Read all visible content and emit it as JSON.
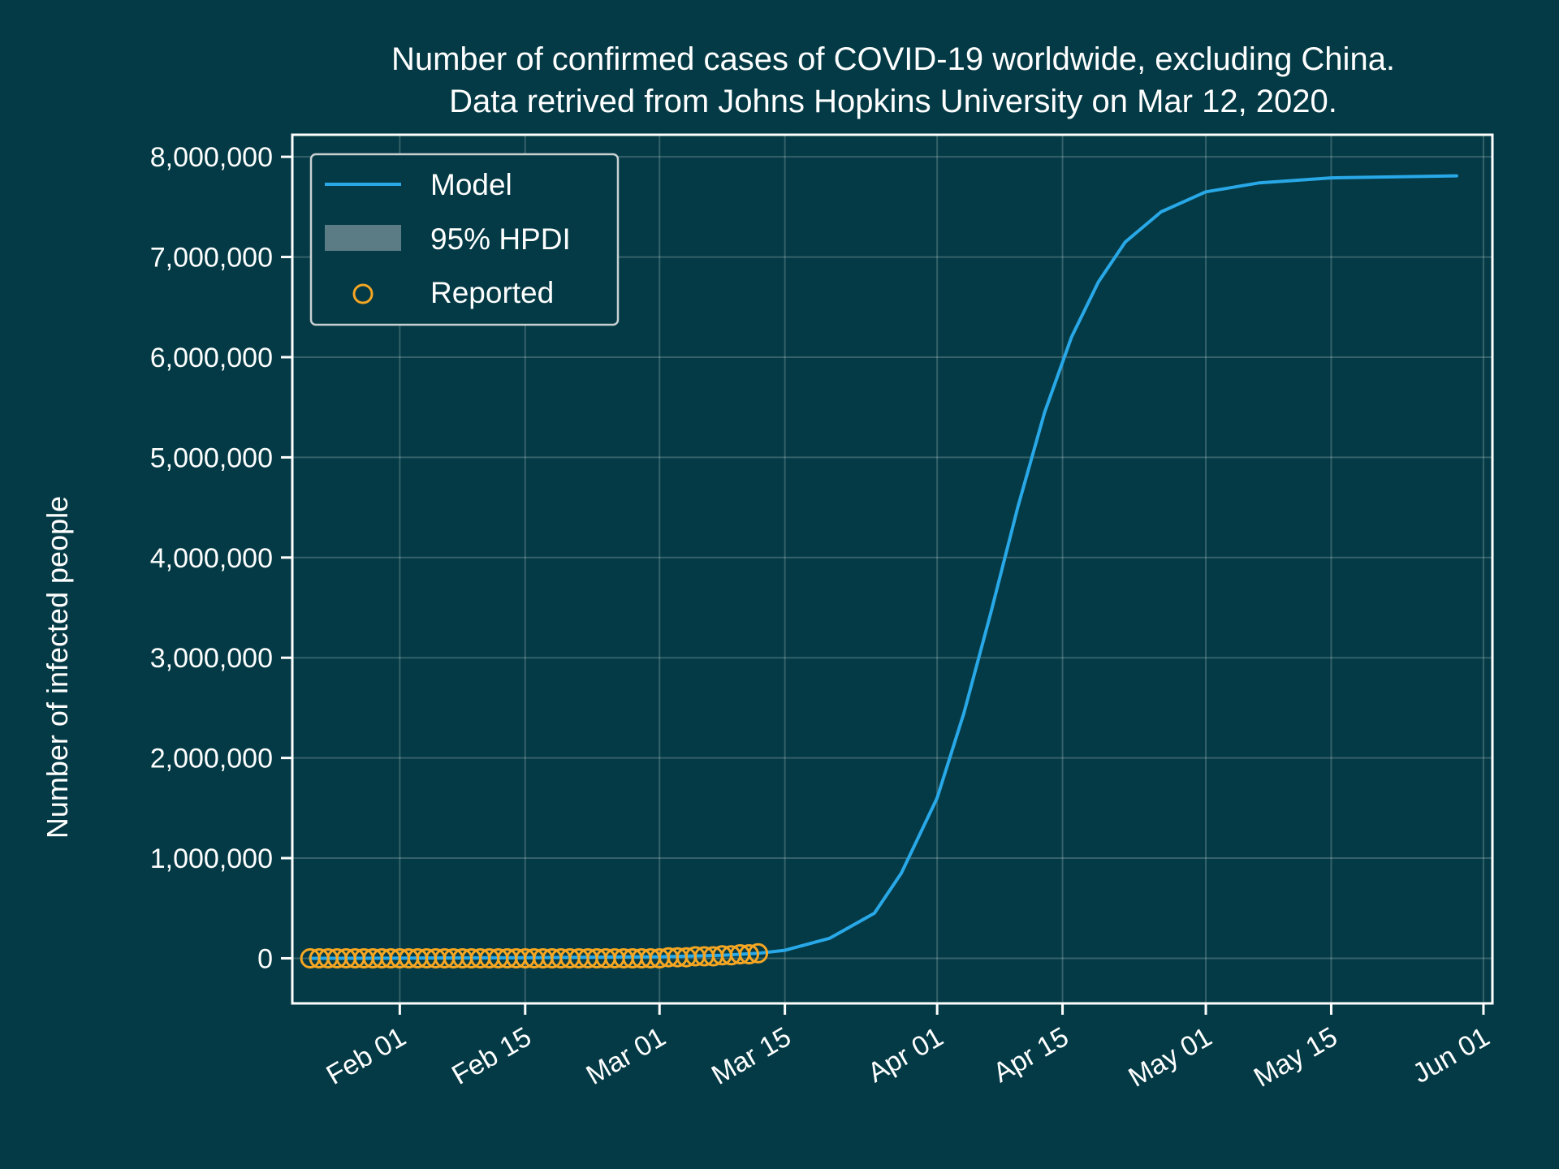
{
  "chart_data": {
    "type": "line",
    "title_lines": [
      "Number of confirmed cases of COVID-19 worldwide, excluding China.",
      "Data retrived from Johns Hopkins University on Mar 12, 2020."
    ],
    "xlabel": "",
    "ylabel": "Number of infected people",
    "x_axis_type": "date",
    "xlim": [
      "2020-01-20",
      "2020-06-02"
    ],
    "ylim": [
      -450000,
      8220000
    ],
    "x_ticks": [
      {
        "date": "2020-02-01",
        "label": "Feb 01"
      },
      {
        "date": "2020-02-15",
        "label": "Feb 15"
      },
      {
        "date": "2020-03-01",
        "label": "Mar 01"
      },
      {
        "date": "2020-03-15",
        "label": "Mar 15"
      },
      {
        "date": "2020-04-01",
        "label": "Apr 01"
      },
      {
        "date": "2020-04-15",
        "label": "Apr 15"
      },
      {
        "date": "2020-05-01",
        "label": "May 01"
      },
      {
        "date": "2020-05-15",
        "label": "May 15"
      },
      {
        "date": "2020-06-01",
        "label": "Jun 01"
      }
    ],
    "y_ticks": [
      {
        "value": 0,
        "label": "0"
      },
      {
        "value": 1000000,
        "label": "1,000,000"
      },
      {
        "value": 2000000,
        "label": "2,000,000"
      },
      {
        "value": 3000000,
        "label": "3,000,000"
      },
      {
        "value": 4000000,
        "label": "4,000,000"
      },
      {
        "value": 5000000,
        "label": "5,000,000"
      },
      {
        "value": 6000000,
        "label": "6,000,000"
      },
      {
        "value": 7000000,
        "label": "7,000,000"
      },
      {
        "value": 8000000,
        "label": "8,000,000"
      }
    ],
    "grid": true,
    "legend_position": "top-left",
    "series": [
      {
        "name": "Model",
        "kind": "line",
        "color": "#29a8e8",
        "points": [
          [
            "2020-01-22",
            0
          ],
          [
            "2020-02-01",
            2000
          ],
          [
            "2020-02-15",
            6000
          ],
          [
            "2020-03-01",
            15000
          ],
          [
            "2020-03-08",
            30000
          ],
          [
            "2020-03-12",
            50000
          ],
          [
            "2020-03-15",
            80000
          ],
          [
            "2020-03-20",
            200000
          ],
          [
            "2020-03-25",
            450000
          ],
          [
            "2020-03-28",
            850000
          ],
          [
            "2020-04-01",
            1600000
          ],
          [
            "2020-04-04",
            2450000
          ],
          [
            "2020-04-07",
            3450000
          ],
          [
            "2020-04-10",
            4500000
          ],
          [
            "2020-04-13",
            5450000
          ],
          [
            "2020-04-16",
            6200000
          ],
          [
            "2020-04-19",
            6750000
          ],
          [
            "2020-04-22",
            7150000
          ],
          [
            "2020-04-26",
            7450000
          ],
          [
            "2020-05-01",
            7650000
          ],
          [
            "2020-05-07",
            7740000
          ],
          [
            "2020-05-15",
            7790000
          ],
          [
            "2020-05-29",
            7810000
          ]
        ]
      },
      {
        "name": "95% HPDI",
        "kind": "band",
        "color": "#5b7c84",
        "points": []
      },
      {
        "name": "Reported",
        "kind": "scatter",
        "color": "#f5a623",
        "points": [
          [
            "2020-01-22",
            0
          ],
          [
            "2020-01-23",
            0
          ],
          [
            "2020-01-24",
            0
          ],
          [
            "2020-01-25",
            0
          ],
          [
            "2020-01-26",
            0
          ],
          [
            "2020-01-27",
            0
          ],
          [
            "2020-01-28",
            0
          ],
          [
            "2020-01-29",
            0
          ],
          [
            "2020-01-30",
            0
          ],
          [
            "2020-01-31",
            0
          ],
          [
            "2020-02-01",
            0
          ],
          [
            "2020-02-02",
            0
          ],
          [
            "2020-02-03",
            0
          ],
          [
            "2020-02-04",
            0
          ],
          [
            "2020-02-05",
            0
          ],
          [
            "2020-02-06",
            0
          ],
          [
            "2020-02-07",
            0
          ],
          [
            "2020-02-08",
            0
          ],
          [
            "2020-02-09",
            0
          ],
          [
            "2020-02-10",
            0
          ],
          [
            "2020-02-11",
            0
          ],
          [
            "2020-02-12",
            0
          ],
          [
            "2020-02-13",
            0
          ],
          [
            "2020-02-14",
            0
          ],
          [
            "2020-02-15",
            0
          ],
          [
            "2020-02-16",
            0
          ],
          [
            "2020-02-17",
            0
          ],
          [
            "2020-02-18",
            0
          ],
          [
            "2020-02-19",
            0
          ],
          [
            "2020-02-20",
            0
          ],
          [
            "2020-02-21",
            0
          ],
          [
            "2020-02-22",
            0
          ],
          [
            "2020-02-23",
            0
          ],
          [
            "2020-02-24",
            0
          ],
          [
            "2020-02-25",
            0
          ],
          [
            "2020-02-26",
            0
          ],
          [
            "2020-02-27",
            0
          ],
          [
            "2020-02-28",
            0
          ],
          [
            "2020-02-29",
            0
          ],
          [
            "2020-03-01",
            0
          ],
          [
            "2020-03-02",
            10000
          ],
          [
            "2020-03-03",
            10000
          ],
          [
            "2020-03-04",
            10000
          ],
          [
            "2020-03-05",
            20000
          ],
          [
            "2020-03-06",
            20000
          ],
          [
            "2020-03-07",
            20000
          ],
          [
            "2020-03-08",
            30000
          ],
          [
            "2020-03-09",
            30000
          ],
          [
            "2020-03-10",
            40000
          ],
          [
            "2020-03-11",
            40000
          ],
          [
            "2020-03-12",
            50000
          ]
        ]
      }
    ]
  }
}
